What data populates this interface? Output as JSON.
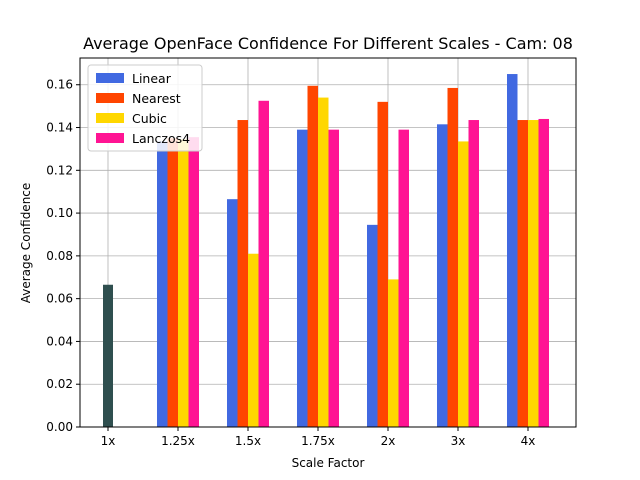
{
  "chart_data": {
    "type": "bar",
    "title": "Average OpenFace Confidence For Different Scales - Cam: 08",
    "xlabel": "Scale Factor",
    "ylabel": "Average Confidence",
    "ylim": [
      0,
      0.1725
    ],
    "yticks": [
      0.0,
      0.02,
      0.04,
      0.06,
      0.08,
      0.1,
      0.12,
      0.14,
      0.16
    ],
    "ytick_labels": [
      "0.00",
      "0.02",
      "0.04",
      "0.06",
      "0.08",
      "0.10",
      "0.12",
      "0.14",
      "0.16"
    ],
    "categories": [
      "1x",
      "1.25x",
      "1.5x",
      "1.75x",
      "2x",
      "3x",
      "4x"
    ],
    "grid": true,
    "legend_position": "top-left",
    "baseline": {
      "category": "1x",
      "value": 0.0665,
      "color": "#2f4f4f"
    },
    "series": [
      {
        "name": "Linear",
        "color": "#4169e1",
        "values": [
          null,
          0.1335,
          0.1065,
          0.139,
          0.0945,
          0.1415,
          0.165
        ]
      },
      {
        "name": "Nearest",
        "color": "#ff4500",
        "values": [
          null,
          0.135,
          0.1435,
          0.1595,
          0.152,
          0.1585,
          0.1435
        ]
      },
      {
        "name": "Cubic",
        "color": "#ffd700",
        "values": [
          null,
          0.1345,
          0.081,
          0.154,
          0.069,
          0.1335,
          0.1435
        ]
      },
      {
        "name": "Lanczos4",
        "color": "#ff1493",
        "values": [
          null,
          0.1355,
          0.1525,
          0.139,
          0.139,
          0.1435,
          0.144
        ]
      }
    ]
  }
}
